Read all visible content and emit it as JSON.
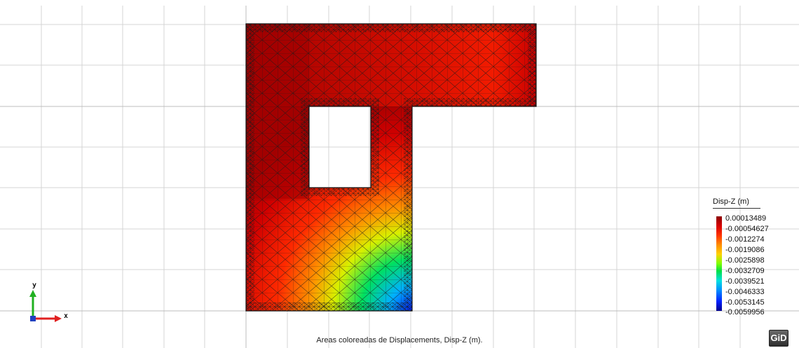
{
  "legend": {
    "title": "Disp-Z (m)",
    "values": [
      "0.00013489",
      "-0.00054627",
      "-0.0012274",
      "-0.0019086",
      "-0.0025898",
      "-0.0032709",
      "-0.0039521",
      "-0.0046333",
      "-0.0053145",
      "-0.0059956"
    ]
  },
  "caption": "Areas coloreadas de Displacements, Disp-Z (m).",
  "logo": "GiD",
  "axes": {
    "x_label": "x",
    "y_label": "y",
    "x_color": "#e02020",
    "y_color": "#20b020"
  },
  "colors": {
    "max": "#8b0000",
    "min": "#00008b",
    "mesh": "#1a1a1a"
  }
}
